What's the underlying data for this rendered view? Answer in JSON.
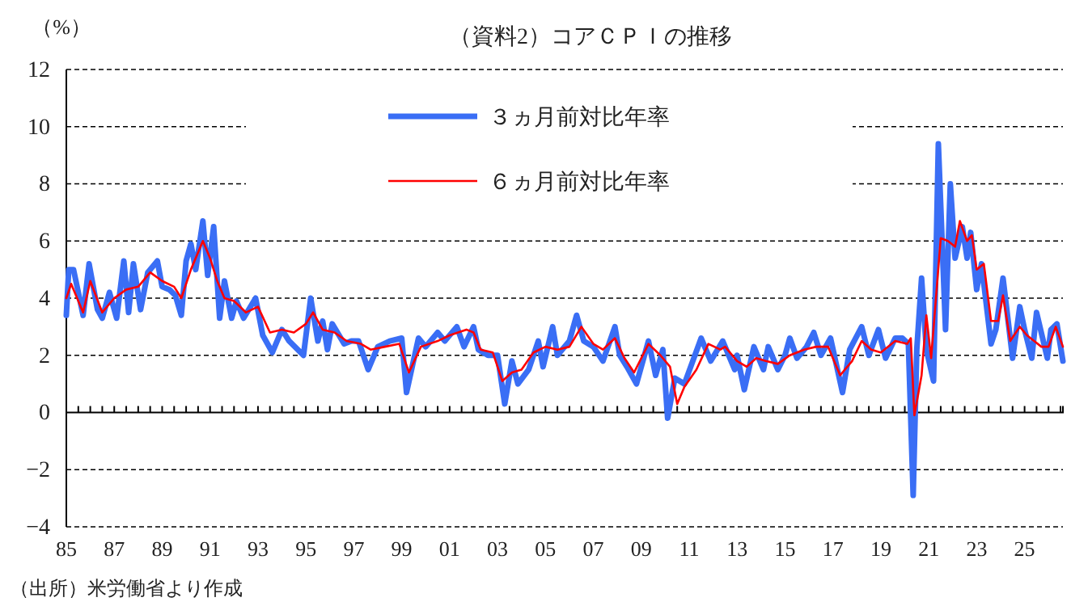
{
  "chart_data": {
    "type": "line",
    "title": "（資料2）コアＣＰＩの推移",
    "ylabel": "（%）",
    "annotations": [
      "（出所）米労働省より作成"
    ],
    "xlim": [
      1985,
      2026.6
    ],
    "ylim": [
      -4,
      12
    ],
    "yticks": [
      {
        "value": -4,
        "label": "−4"
      },
      {
        "value": -2,
        "label": "−2"
      },
      0,
      2,
      4,
      6,
      8,
      10,
      12
    ],
    "xticks": [
      {
        "value": 1985,
        "label": "85"
      },
      {
        "value": 1985.5,
        "label": null
      },
      {
        "value": 1986,
        "label": null
      },
      {
        "value": 1986.5,
        "label": null
      },
      {
        "value": 1987,
        "label": "87"
      },
      {
        "value": 1987.5,
        "label": null
      },
      {
        "value": 1988,
        "label": null
      },
      {
        "value": 1988.5,
        "label": null
      },
      {
        "value": 1989,
        "label": "89"
      },
      {
        "value": 1989.5,
        "label": null
      },
      {
        "value": 1990,
        "label": null
      },
      {
        "value": 1990.5,
        "label": null
      },
      {
        "value": 1991,
        "label": "91"
      },
      {
        "value": 1991.5,
        "label": null
      },
      {
        "value": 1992,
        "label": null
      },
      {
        "value": 1992.5,
        "label": null
      },
      {
        "value": 1993,
        "label": "93"
      },
      {
        "value": 1993.5,
        "label": null
      },
      {
        "value": 1994,
        "label": null
      },
      {
        "value": 1994.5,
        "label": null
      },
      {
        "value": 1995,
        "label": "95"
      },
      {
        "value": 1995.5,
        "label": null
      },
      {
        "value": 1996,
        "label": null
      },
      {
        "value": 1996.5,
        "label": null
      },
      {
        "value": 1997,
        "label": "97"
      },
      {
        "value": 1997.5,
        "label": null
      },
      {
        "value": 1998,
        "label": null
      },
      {
        "value": 1998.5,
        "label": null
      },
      {
        "value": 1999,
        "label": "99"
      },
      {
        "value": 1999.5,
        "label": null
      },
      {
        "value": 2000,
        "label": null
      },
      {
        "value": 2000.5,
        "label": null
      },
      {
        "value": 2001,
        "label": "01"
      },
      {
        "value": 2001.5,
        "label": null
      },
      {
        "value": 2002,
        "label": null
      },
      {
        "value": 2002.5,
        "label": null
      },
      {
        "value": 2003,
        "label": "03"
      },
      {
        "value": 2003.5,
        "label": null
      },
      {
        "value": 2004,
        "label": null
      },
      {
        "value": 2004.5,
        "label": null
      },
      {
        "value": 2005,
        "label": "05"
      },
      {
        "value": 2005.5,
        "label": null
      },
      {
        "value": 2006,
        "label": null
      },
      {
        "value": 2006.5,
        "label": null
      },
      {
        "value": 2007,
        "label": "07"
      },
      {
        "value": 2007.5,
        "label": null
      },
      {
        "value": 2008,
        "label": null
      },
      {
        "value": 2008.5,
        "label": null
      },
      {
        "value": 2009,
        "label": "09"
      },
      {
        "value": 2009.5,
        "label": null
      },
      {
        "value": 2010,
        "label": null
      },
      {
        "value": 2010.5,
        "label": null
      },
      {
        "value": 2011,
        "label": "11"
      },
      {
        "value": 2011.5,
        "label": null
      },
      {
        "value": 2012,
        "label": null
      },
      {
        "value": 2012.5,
        "label": null
      },
      {
        "value": 2013,
        "label": "13"
      },
      {
        "value": 2013.5,
        "label": null
      },
      {
        "value": 2014,
        "label": null
      },
      {
        "value": 2014.5,
        "label": null
      },
      {
        "value": 2015,
        "label": "15"
      },
      {
        "value": 2015.5,
        "label": null
      },
      {
        "value": 2016,
        "label": null
      },
      {
        "value": 2016.5,
        "label": null
      },
      {
        "value": 2017,
        "label": "17"
      },
      {
        "value": 2017.5,
        "label": null
      },
      {
        "value": 2018,
        "label": null
      },
      {
        "value": 2018.5,
        "label": null
      },
      {
        "value": 2019,
        "label": "19"
      },
      {
        "value": 2019.5,
        "label": null
      },
      {
        "value": 2020,
        "label": null
      },
      {
        "value": 2020.5,
        "label": null
      },
      {
        "value": 2021,
        "label": "21"
      },
      {
        "value": 2021.5,
        "label": null
      },
      {
        "value": 2022,
        "label": null
      },
      {
        "value": 2022.5,
        "label": null
      },
      {
        "value": 2023,
        "label": "23"
      },
      {
        "value": 2023.5,
        "label": null
      },
      {
        "value": 2024,
        "label": null
      },
      {
        "value": 2024.5,
        "label": null
      },
      {
        "value": 2025,
        "label": "25"
      },
      {
        "value": 2025.5,
        "label": null
      },
      {
        "value": 2026,
        "label": null
      },
      {
        "value": 2026.5,
        "label": null
      }
    ],
    "grid": "y",
    "legend": "top",
    "line_style": "solid",
    "marker": "none",
    "series": [
      {
        "name": "３ヵ月前対比年率",
        "color": "#3a6ef5",
        "x": [
          1985.0,
          1985.1,
          1985.3,
          1985.7,
          1985.95,
          1986.3,
          1986.5,
          1986.8,
          1987.1,
          1987.4,
          1987.6,
          1987.8,
          1988.1,
          1988.4,
          1988.8,
          1989.0,
          1989.3,
          1989.55,
          1989.8,
          1990.0,
          1990.2,
          1990.4,
          1990.7,
          1990.9,
          1991.15,
          1991.4,
          1991.6,
          1991.9,
          1992.1,
          1992.4,
          1992.9,
          1993.2,
          1993.6,
          1994.0,
          1994.3,
          1994.9,
          1995.2,
          1995.5,
          1995.7,
          1995.9,
          1996.1,
          1996.6,
          1996.9,
          1997.2,
          1997.6,
          1998.0,
          1998.5,
          1999.0,
          1999.2,
          1999.7,
          2000.0,
          2000.5,
          2000.8,
          2001.3,
          2001.6,
          2002.0,
          2002.2,
          2002.6,
          2003.0,
          2003.3,
          2003.6,
          2003.85,
          2004.3,
          2004.7,
          2004.9,
          2005.3,
          2005.5,
          2006.0,
          2006.3,
          2006.6,
          2007.0,
          2007.4,
          2007.9,
          2008.1,
          2008.4,
          2008.8,
          2009.3,
          2009.6,
          2009.9,
          2010.1,
          2010.4,
          2010.8,
          2011.5,
          2011.9,
          2012.4,
          2012.9,
          2013.0,
          2013.3,
          2013.7,
          2014.1,
          2014.3,
          2014.7,
          2015.0,
          2015.2,
          2015.5,
          2015.9,
          2016.2,
          2016.5,
          2016.9,
          2017.4,
          2017.7,
          2018.2,
          2018.5,
          2018.9,
          2019.2,
          2019.6,
          2019.9,
          2020.15,
          2020.35,
          2020.5,
          2020.7,
          2020.9,
          2021.2,
          2021.4,
          2021.7,
          2021.9,
          2022.1,
          2022.4,
          2022.6,
          2022.75,
          2023.0,
          2023.2,
          2023.6,
          2023.8,
          2024.1,
          2024.5,
          2024.8,
          2025.0,
          2025.3,
          2025.5,
          2025.95,
          2026.1,
          2026.35,
          2026.6
        ],
        "values": [
          3.4,
          5.0,
          5.0,
          3.4,
          5.2,
          3.6,
          3.3,
          4.2,
          3.3,
          5.3,
          3.5,
          5.2,
          3.6,
          4.9,
          5.3,
          4.4,
          4.3,
          4.1,
          3.4,
          5.3,
          5.9,
          5.0,
          6.7,
          4.8,
          6.5,
          3.3,
          4.6,
          3.3,
          3.9,
          3.3,
          4.0,
          2.7,
          2.1,
          2.9,
          2.5,
          2.0,
          4.0,
          2.5,
          3.2,
          2.2,
          3.1,
          2.4,
          2.5,
          2.5,
          1.5,
          2.3,
          2.5,
          2.6,
          0.7,
          2.6,
          2.3,
          2.8,
          2.5,
          3.0,
          2.3,
          3.0,
          2.2,
          2.0,
          2.0,
          0.3,
          1.8,
          1.0,
          1.5,
          2.5,
          1.6,
          3.0,
          2.0,
          2.5,
          3.4,
          2.5,
          2.3,
          1.8,
          3.0,
          2.0,
          1.6,
          1.0,
          2.5,
          1.3,
          2.2,
          -0.2,
          1.2,
          1.0,
          2.6,
          1.8,
          2.5,
          1.5,
          2.0,
          0.8,
          2.3,
          1.5,
          2.3,
          1.5,
          2.0,
          2.6,
          1.9,
          2.3,
          2.8,
          2.0,
          2.6,
          0.7,
          2.2,
          3.0,
          2.0,
          2.9,
          1.9,
          2.6,
          2.6,
          2.4,
          -2.9,
          2.2,
          4.7,
          2.2,
          1.1,
          9.4,
          2.9,
          8.0,
          5.4,
          6.5,
          5.4,
          6.3,
          4.3,
          5.2,
          2.4,
          2.9,
          4.7,
          1.9,
          3.7,
          2.9,
          1.9,
          3.5,
          1.9,
          2.9,
          3.1,
          1.8
        ]
      },
      {
        "name": "６ヵ月前対比年率",
        "color": "#ff0000",
        "x": [
          1985.0,
          1985.2,
          1985.7,
          1986.0,
          1986.5,
          1987.0,
          1987.5,
          1988.0,
          1988.5,
          1989.0,
          1989.5,
          1989.8,
          1990.2,
          1990.7,
          1991.0,
          1991.3,
          1991.6,
          1992.0,
          1992.5,
          1993.0,
          1993.5,
          1994.0,
          1994.5,
          1995.0,
          1995.3,
          1995.7,
          1996.2,
          1996.7,
          1997.3,
          1997.7,
          1998.3,
          1998.9,
          1999.3,
          1999.8,
          2000.5,
          2001.0,
          2001.7,
          2002.0,
          2002.3,
          2002.8,
          2003.2,
          2003.6,
          2004.0,
          2004.5,
          2005.0,
          2005.5,
          2006.0,
          2006.5,
          2007.0,
          2007.4,
          2007.9,
          2008.3,
          2008.7,
          2009.3,
          2009.8,
          2010.2,
          2010.5,
          2010.8,
          2011.3,
          2011.8,
          2012.3,
          2012.5,
          2013.0,
          2013.4,
          2013.8,
          2014.2,
          2014.7,
          2015.2,
          2015.8,
          2016.3,
          2016.8,
          2017.3,
          2017.8,
          2018.2,
          2018.6,
          2019.0,
          2019.6,
          2020.1,
          2020.25,
          2020.4,
          2020.7,
          2020.9,
          2021.1,
          2021.5,
          2021.8,
          2022.1,
          2022.3,
          2022.6,
          2022.8,
          2023.0,
          2023.3,
          2023.6,
          2023.9,
          2024.1,
          2024.4,
          2024.8,
          2025.1,
          2025.4,
          2025.7,
          2026.0,
          2026.3,
          2026.6
        ],
        "values": [
          4.0,
          4.5,
          3.5,
          4.6,
          3.5,
          4.0,
          4.3,
          4.4,
          4.9,
          4.6,
          4.4,
          4.0,
          5.0,
          6.0,
          5.4,
          4.6,
          4.0,
          3.9,
          3.5,
          3.7,
          2.8,
          2.9,
          2.8,
          3.1,
          3.5,
          2.9,
          2.8,
          2.5,
          2.4,
          2.2,
          2.3,
          2.4,
          1.4,
          2.3,
          2.5,
          2.7,
          2.9,
          2.8,
          2.2,
          2.1,
          1.1,
          1.4,
          1.5,
          2.1,
          2.3,
          2.2,
          2.3,
          3.0,
          2.4,
          2.2,
          2.6,
          1.9,
          1.4,
          2.4,
          2.0,
          1.6,
          0.3,
          0.9,
          1.5,
          2.4,
          2.2,
          2.3,
          1.8,
          1.6,
          1.9,
          1.8,
          1.7,
          2.0,
          2.2,
          2.3,
          2.3,
          1.3,
          1.8,
          2.5,
          2.2,
          2.1,
          2.5,
          2.4,
          2.6,
          -0.1,
          1.3,
          3.4,
          1.9,
          6.1,
          6.0,
          5.8,
          6.7,
          6.0,
          6.2,
          5.0,
          5.2,
          3.2,
          3.2,
          4.1,
          2.5,
          3.0,
          2.7,
          2.5,
          2.3,
          2.3,
          3.0,
          2.3
        ]
      }
    ]
  }
}
